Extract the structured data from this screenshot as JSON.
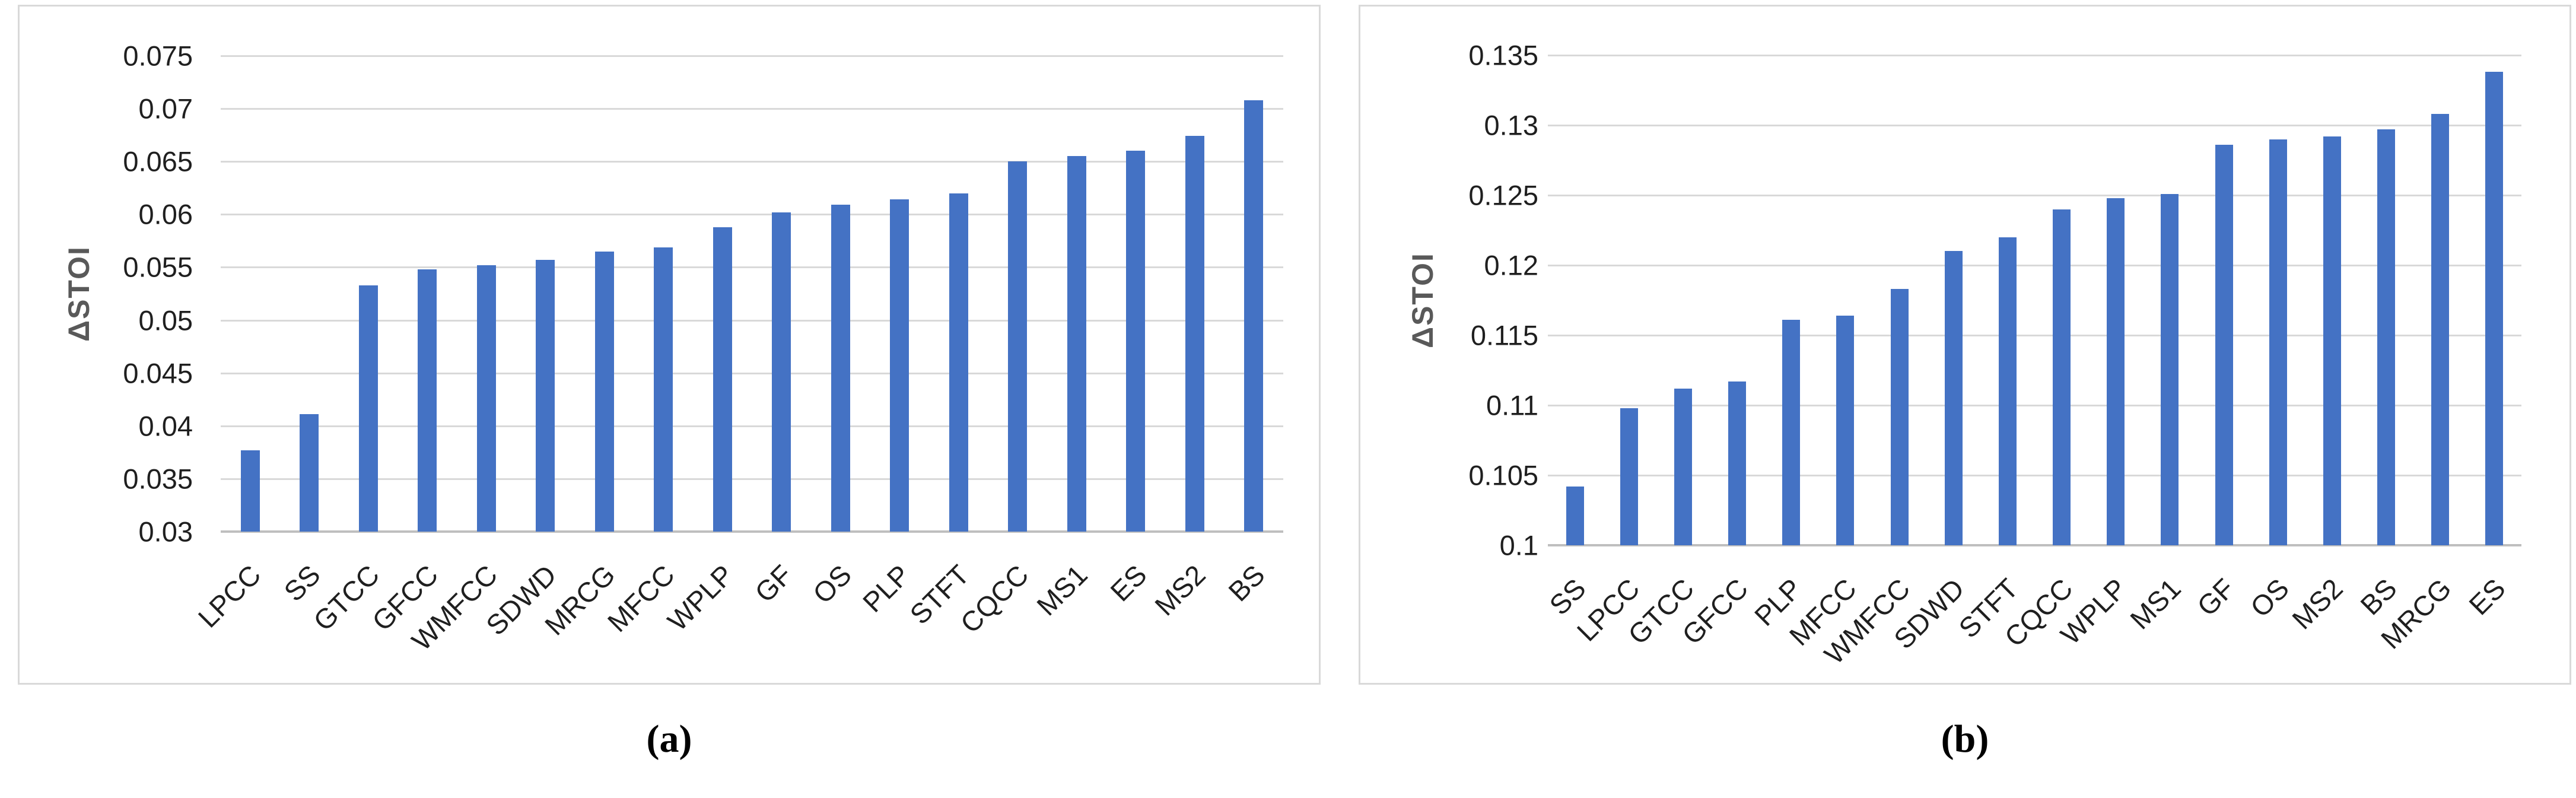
{
  "figure": {
    "caption_a": "(a)",
    "caption_b": "(b)"
  },
  "colors": {
    "bar": "#4472c4",
    "gridline": "#d9d9d9",
    "axis_line": "#bfbfbf",
    "axis_title": "#595959",
    "tick_label": "#1f1f1f",
    "chart_border": "#d9d9d9"
  },
  "chart_data": [
    {
      "id": "a",
      "type": "bar",
      "title": "",
      "xlabel": "",
      "ylabel": "ΔSTOI",
      "ylim": [
        0.03,
        0.075
      ],
      "ytick_step": 0.005,
      "yticks": [
        "0.075",
        "0.07",
        "0.065",
        "0.06",
        "0.055",
        "0.05",
        "0.045",
        "0.04",
        "0.035",
        "0.03"
      ],
      "grid": "horizontal",
      "legend": "none",
      "categories": [
        "LPCC",
        "SS",
        "GTCC",
        "GFCC",
        "WMFCC",
        "SDWD",
        "MRCG",
        "MFCC",
        "WPLP",
        "GF",
        "OS",
        "PLP",
        "STFT",
        "CQCC",
        "MS1",
        "ES",
        "MS2",
        "BS"
      ],
      "values": [
        0.0377,
        0.0411,
        0.0533,
        0.0548,
        0.0552,
        0.0557,
        0.0565,
        0.0569,
        0.0588,
        0.0602,
        0.0609,
        0.0614,
        0.062,
        0.065,
        0.0655,
        0.066,
        0.0674,
        0.0708
      ]
    },
    {
      "id": "b",
      "type": "bar",
      "title": "",
      "xlabel": "",
      "ylabel": "ΔSTOI",
      "ylim": [
        0.1,
        0.135
      ],
      "ytick_step": 0.005,
      "yticks": [
        "0.135",
        "0.13",
        "0.125",
        "0.12",
        "0.115",
        "0.11",
        "0.105",
        "0.1"
      ],
      "grid": "horizontal",
      "legend": "none",
      "categories": [
        "SS",
        "LPCC",
        "GTCC",
        "GFCC",
        "PLP",
        "MFCC",
        "WMFCC",
        "SDWD",
        "STFT",
        "CQCC",
        "WPLP",
        "MS1",
        "GF",
        "OS",
        "MS2",
        "BS",
        "MRCG",
        "ES"
      ],
      "values": [
        0.1042,
        0.1098,
        0.1112,
        0.1117,
        0.1161,
        0.1164,
        0.1183,
        0.121,
        0.122,
        0.124,
        0.1248,
        0.1251,
        0.1286,
        0.129,
        0.1292,
        0.1297,
        0.1308,
        0.1338
      ]
    }
  ]
}
